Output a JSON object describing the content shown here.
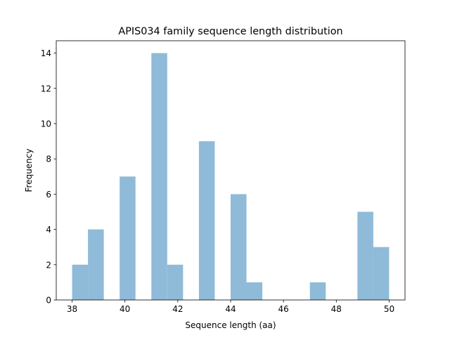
{
  "chart_data": {
    "type": "bar",
    "subtype": "histogram",
    "title": "APIS034 family sequence length distribution",
    "xlabel": "Sequence length (aa)",
    "ylabel": "Frequency",
    "bin_edges": [
      38.0,
      38.6,
      39.2,
      39.8,
      40.4,
      41.0,
      41.6,
      42.2,
      42.8,
      43.4,
      44.0,
      44.6,
      45.2,
      45.8,
      46.4,
      47.0,
      47.6,
      48.2,
      48.8,
      49.4,
      50.0
    ],
    "values": [
      2,
      4,
      0,
      7,
      0,
      14,
      2,
      0,
      9,
      0,
      6,
      1,
      0,
      0,
      0,
      1,
      0,
      0,
      5,
      3
    ],
    "xlim": [
      37.4,
      50.6
    ],
    "ylim": [
      0,
      14.7
    ],
    "xticks": [
      38,
      40,
      42,
      44,
      46,
      48,
      50
    ],
    "yticks": [
      0,
      2,
      4,
      6,
      8,
      10,
      12,
      14
    ],
    "grid": false,
    "bar_color": "#8fbbd9"
  }
}
